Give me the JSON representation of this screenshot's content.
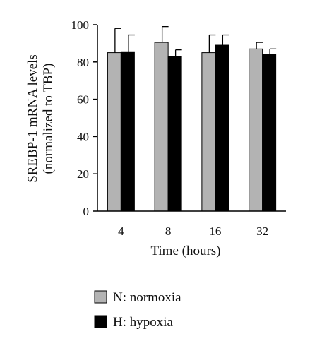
{
  "chart_data": {
    "type": "bar",
    "title": "",
    "xlabel": "Time (hours)",
    "ylabel_line1": "SREBP-1 mRNA levels",
    "ylabel_line2": "(normalized to TBP)",
    "categories": [
      "4",
      "8",
      "16",
      "32"
    ],
    "ylim": [
      0,
      100
    ],
    "yticks": [
      0,
      20,
      40,
      60,
      80,
      100
    ],
    "grid": false,
    "legend_position": "bottom-left",
    "series": [
      {
        "name": "N: normoxia",
        "color": "#b3b3b3",
        "values": [
          85,
          90.5,
          85,
          87
        ],
        "errors": [
          13,
          8.5,
          9.5,
          3.5
        ]
      },
      {
        "name": "H: hypoxia",
        "color": "#000000",
        "values": [
          85.5,
          83,
          89,
          84
        ],
        "errors": [
          9,
          3.5,
          5.5,
          3
        ]
      }
    ]
  }
}
